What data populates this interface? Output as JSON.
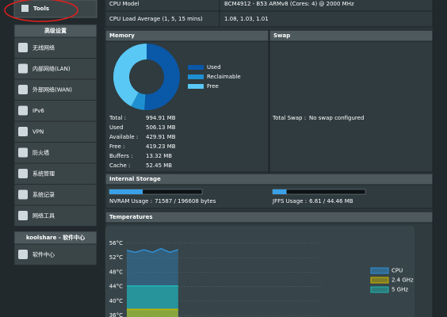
{
  "sidebar": {
    "tools": "Tools",
    "advanced": {
      "title": "高级设置",
      "items": [
        "无线网络",
        "内部网络(LAN)",
        "外部网络(WAN)",
        "IPv6",
        "VPN",
        "防火墙",
        "系统管理",
        "系统记录",
        "网络工具"
      ]
    },
    "koolshare": {
      "title": "koolshare - 软件中心",
      "items": [
        "软件中心"
      ]
    }
  },
  "info": [
    [
      "CPU Model",
      "BCM4912 - B53 ARMv8 (Cores: 4) @ 2000 MHz"
    ],
    [
      "CPU Load Average (1, 5, 15 mins)",
      "1.08, 1.03, 1.01"
    ]
  ],
  "memory": {
    "title": "Memory",
    "chart": {
      "type": "pie",
      "categories": [
        "Used",
        "Reclaimable",
        "Free"
      ],
      "values": [
        506.13,
        65.77,
        419.23
      ],
      "colors": [
        "#0a58a8",
        "#1e8fd0",
        "#5ac8f5"
      ]
    },
    "rows": [
      [
        "Total :",
        "994.91 MB"
      ],
      [
        "Used",
        "506.13 MB"
      ],
      [
        "Available :",
        "429.91 MB"
      ],
      [
        "Free :",
        "419.23 MB"
      ],
      [
        "Buffers :",
        "13.32 MB"
      ],
      [
        "Cache :",
        "52.45 MB"
      ]
    ]
  },
  "swap": {
    "title": "Swap",
    "rows": [
      [
        "Total Swap :",
        "No swap configured"
      ]
    ]
  },
  "storage": {
    "title": "Internal Storage",
    "items": [
      {
        "label": "NVRAM Usage :",
        "value": "71587 / 196608 bytes",
        "percent": 36
      },
      {
        "label": "JFFS Usage :",
        "value": "6.81 / 44.46 MB",
        "percent": 15
      }
    ]
  },
  "temperatures": {
    "title": "Temperatures",
    "chart": {
      "type": "line",
      "ylim": [
        35.6,
        57.5
      ],
      "yticks": [
        {
          "value": 56,
          "label": "56°C"
        },
        {
          "value": 52,
          "label": "52°C"
        },
        {
          "value": 48,
          "label": "48°C"
        },
        {
          "value": 44,
          "label": "44°C"
        },
        {
          "value": 40,
          "label": "40°C"
        },
        {
          "value": 36,
          "label": "36°C"
        }
      ],
      "series": [
        {
          "name": "CPU",
          "color": "#2e8fd6",
          "values": [
            54,
            53.5,
            54.2,
            53.5,
            54.5,
            53.5,
            54.2
          ]
        },
        {
          "name": "2.4 GHz",
          "color": "#c8b400",
          "values": [
            37.7,
            37.7,
            37.7,
            37.7,
            37.7,
            37.7,
            37.7
          ]
        },
        {
          "name": "5 GHz",
          "color": "#1fb5b0",
          "values": [
            44.2,
            44.2,
            44.2,
            44.2,
            44.2,
            44.2,
            44.2
          ]
        }
      ]
    }
  }
}
